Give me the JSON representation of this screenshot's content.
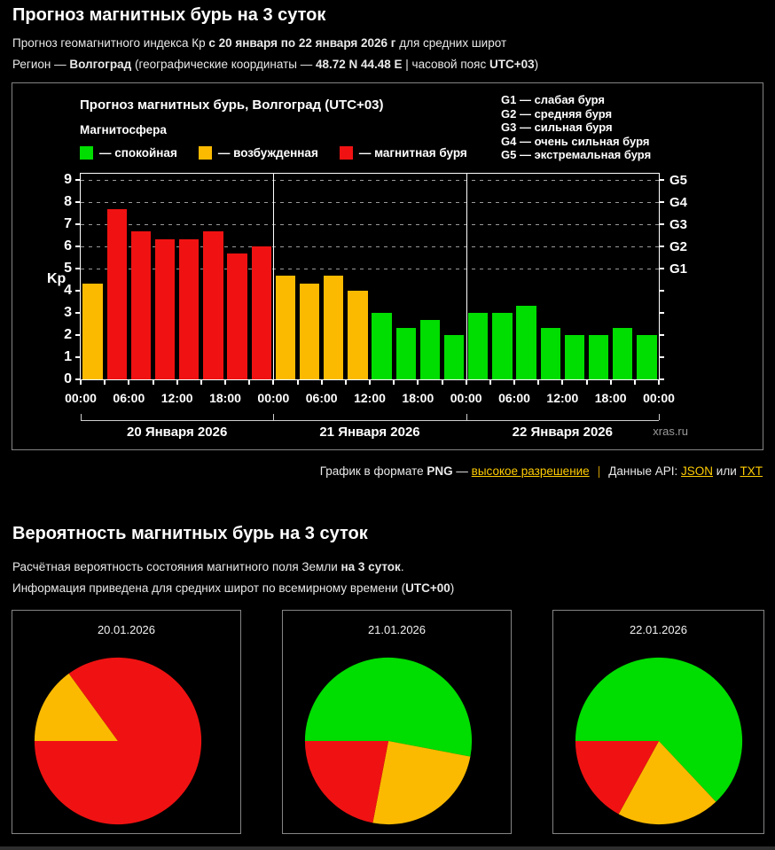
{
  "header": {
    "title": "Прогноз магнитных бурь на 3 суток",
    "line1_prefix": "Прогноз геомагнитного индекса Кр ",
    "line1_bold": "с 20 января по 22 января 2026 г",
    "line1_suffix": " для средних широт",
    "line2_prefix": "Регион — ",
    "line2_region": "Волгоград",
    "line2_mid": " (географические координаты — ",
    "line2_coords": "48.72 N 44.48 E",
    "line2_sep": " | часовой пояс ",
    "line2_tz": "UTC+03",
    "line2_close": ")"
  },
  "kp_chart": {
    "title": "Прогноз магнитных бурь, Волгоград (UTC+03)",
    "subtitle": "Магнитосфера",
    "ylabel": "Kp",
    "watermark": "xras.ru",
    "legend": [
      {
        "color": "green",
        "label": "— спокойная"
      },
      {
        "color": "orange",
        "label": "— возбужденная"
      },
      {
        "color": "red",
        "label": "— магнитная буря"
      }
    ],
    "g_legend": [
      "G1 — слабая буря",
      "G2 — средняя буря",
      "G3 — сильная буря",
      "G4 — очень сильная буря",
      "G5 — экстремальная буря"
    ]
  },
  "links": {
    "graph_prefix": "График в формате ",
    "png": "PNG",
    "dash": " — ",
    "hires": "высокое разрешение",
    "separator": "|",
    "api_label": "Данные API: ",
    "json": "JSON",
    "or": " или ",
    "txt": "TXT"
  },
  "prob": {
    "title": "Вероятность магнитных бурь на 3 суток",
    "line1_prefix": "Расчётная вероятность состояния магнитного поля Земли ",
    "line1_bold": "на 3 суток",
    "line1_suffix": ".",
    "line2_prefix": "Информация приведена для средних широт по всемирному времени (",
    "line2_bold": "UTC+00",
    "line2_suffix": ")"
  },
  "chart_data": [
    {
      "type": "bar",
      "title": "Прогноз магнитных бурь, Волгоград (UTC+03)",
      "ylabel": "Kp",
      "ylim": [
        0,
        9.3
      ],
      "yticks": [
        0,
        1,
        2,
        3,
        4,
        5,
        6,
        7,
        8,
        9
      ],
      "g_ticks": [
        {
          "kp": 5,
          "label": "G1"
        },
        {
          "kp": 6,
          "label": "G2"
        },
        {
          "kp": 7,
          "label": "G3"
        },
        {
          "kp": 8,
          "label": "G4"
        },
        {
          "kp": 9,
          "label": "G5"
        }
      ],
      "hours_per_bar": 3,
      "hour_tick_labels": [
        "00:00",
        "06:00",
        "12:00",
        "18:00",
        "00:00",
        "06:00",
        "12:00",
        "18:00",
        "00:00",
        "06:00",
        "12:00",
        "18:00",
        "00:00"
      ],
      "palette": {
        "green": "#00dd00",
        "orange": "#fbba00",
        "red": "#f01212"
      },
      "days": [
        {
          "label": "20 Января 2026",
          "values": [
            4.33,
            7.67,
            6.67,
            6.33,
            6.33,
            6.67,
            5.67,
            6.0
          ],
          "colors": [
            "orange",
            "red",
            "red",
            "red",
            "red",
            "red",
            "red",
            "red"
          ]
        },
        {
          "label": "21 Января 2026",
          "values": [
            4.67,
            4.33,
            4.67,
            4.0,
            3.0,
            2.33,
            2.67,
            2.0
          ],
          "colors": [
            "orange",
            "orange",
            "orange",
            "orange",
            "green",
            "green",
            "green",
            "green"
          ]
        },
        {
          "label": "22 Января 2026",
          "values": [
            3.0,
            3.0,
            3.33,
            2.33,
            2.0,
            2.0,
            2.33,
            2.0
          ],
          "colors": [
            "green",
            "green",
            "green",
            "green",
            "green",
            "green",
            "green",
            "green"
          ]
        }
      ]
    },
    {
      "type": "pie",
      "title": "20.01.2026",
      "start": "west",
      "direction": "clockwise",
      "slices": [
        {
          "pct": 15,
          "color": "orange",
          "label": "15%"
        },
        {
          "pct": 85,
          "color": "red",
          "label": "85%"
        }
      ]
    },
    {
      "type": "pie",
      "title": "21.01.2026",
      "start": "west",
      "direction": "clockwise",
      "slices": [
        {
          "pct": 53,
          "color": "green",
          "label": "53%"
        },
        {
          "pct": 25,
          "color": "orange",
          "label": "25%"
        },
        {
          "pct": 22,
          "color": "red",
          "label": "22%"
        }
      ]
    },
    {
      "type": "pie",
      "title": "22.01.2026",
      "start": "west",
      "direction": "clockwise",
      "slices": [
        {
          "pct": 63,
          "color": "green",
          "label": "63%"
        },
        {
          "pct": 20,
          "color": "orange",
          "label": "20%"
        },
        {
          "pct": 17,
          "color": "red",
          "label": "17%"
        }
      ]
    }
  ]
}
